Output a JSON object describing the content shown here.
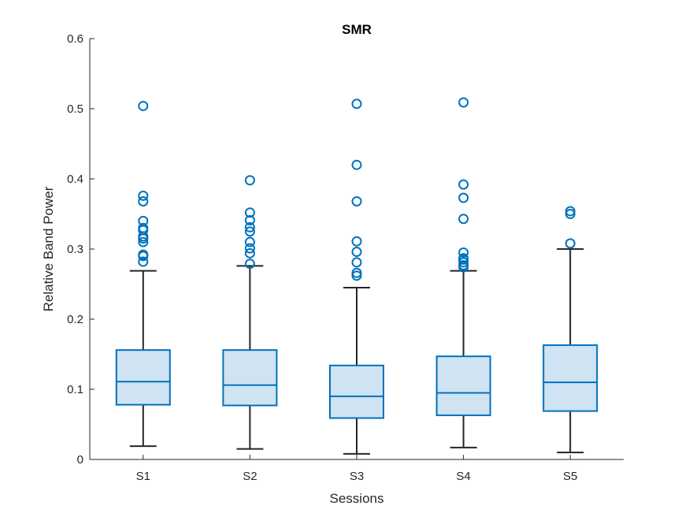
{
  "chart_data": {
    "type": "box",
    "title": "SMR",
    "xlabel": "Sessions",
    "ylabel": "Relative Band Power",
    "categories": [
      "S1",
      "S2",
      "S3",
      "S4",
      "S5"
    ],
    "ylim": [
      0,
      0.6
    ],
    "yticks": [
      0,
      0.1,
      0.2,
      0.3,
      0.4,
      0.5,
      0.6
    ],
    "ytick_labels": [
      "0",
      "0.1",
      "0.2",
      "0.3",
      "0.4",
      "0.5",
      "0.6"
    ],
    "grid": false,
    "colors": {
      "box_edge": "#0072BD",
      "box_fill": "#cfe3f2",
      "whisker": "#262626"
    },
    "boxes": [
      {
        "category": "S1",
        "whisker_low": 0.019,
        "q1": 0.078,
        "median": 0.111,
        "q3": 0.156,
        "whisker_high": 0.269,
        "outliers": [
          0.282,
          0.29,
          0.292,
          0.31,
          0.315,
          0.318,
          0.327,
          0.33,
          0.34,
          0.368,
          0.376,
          0.504
        ]
      },
      {
        "category": "S2",
        "whisker_low": 0.015,
        "q1": 0.077,
        "median": 0.106,
        "q3": 0.156,
        "whisker_high": 0.276,
        "outliers": [
          0.279,
          0.294,
          0.301,
          0.31,
          0.325,
          0.331,
          0.341,
          0.352,
          0.398
        ]
      },
      {
        "category": "S3",
        "whisker_low": 0.008,
        "q1": 0.059,
        "median": 0.09,
        "q3": 0.134,
        "whisker_high": 0.245,
        "outliers": [
          0.262,
          0.266,
          0.281,
          0.296,
          0.311,
          0.368,
          0.42,
          0.507
        ]
      },
      {
        "category": "S4",
        "whisker_low": 0.017,
        "q1": 0.063,
        "median": 0.095,
        "q3": 0.147,
        "whisker_high": 0.269,
        "outliers": [
          0.274,
          0.277,
          0.281,
          0.285,
          0.287,
          0.295,
          0.343,
          0.373,
          0.392,
          0.509
        ]
      },
      {
        "category": "S5",
        "whisker_low": 0.01,
        "q1": 0.069,
        "median": 0.11,
        "q3": 0.163,
        "whisker_high": 0.3,
        "outliers": [
          0.308,
          0.35,
          0.354
        ]
      }
    ]
  }
}
